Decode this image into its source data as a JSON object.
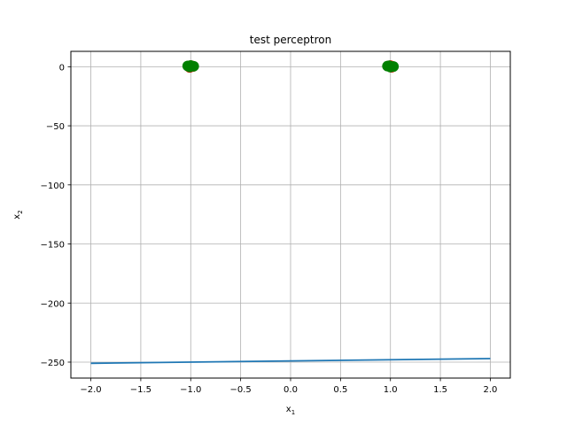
{
  "chart_data": {
    "type": "scatter",
    "title": "test perceptron",
    "xlabel": {
      "base": "x",
      "sub": "1"
    },
    "ylabel": {
      "base": "x",
      "sub": "2"
    },
    "xlim": [
      -2.2,
      2.2
    ],
    "ylim": [
      -263.5,
      13
    ],
    "xticks": [
      -2.0,
      -1.5,
      -1.0,
      -0.5,
      0.0,
      0.5,
      1.0,
      1.5,
      2.0
    ],
    "xtick_labels": [
      "−2.0",
      "−1.5",
      "−1.0",
      "−0.5",
      "0.0",
      "0.5",
      "1.0",
      "1.5",
      "2.0"
    ],
    "yticks": [
      0,
      -50,
      -100,
      -150,
      -200,
      -250
    ],
    "ytick_labels": [
      "0",
      "−50",
      "−100",
      "−150",
      "−200",
      "−250"
    ],
    "grid": true,
    "series": [
      {
        "type": "scatter",
        "color": "#ff0000",
        "x": [
          -1.02,
          -1.0,
          -0.98,
          -1.01,
          -0.99,
          0.98,
          1.0,
          1.02,
          1.01,
          0.99
        ],
        "y": [
          0.4,
          0.9,
          0.2,
          -0.6,
          0.7,
          0.5,
          0.9,
          0.3,
          -0.5,
          0.6
        ]
      },
      {
        "type": "scatter",
        "color": "#008000",
        "x": [
          -1.03,
          -1.0,
          -0.97,
          -1.01,
          0.97,
          1.0,
          1.03,
          0.99
        ],
        "y": [
          0.6,
          1.0,
          0.4,
          -0.2,
          0.5,
          -0.3,
          0.2,
          0.8
        ]
      },
      {
        "type": "line",
        "color": "#1f77b4",
        "x": [
          -2.0,
          2.0
        ],
        "y": [
          -251.0,
          -247.0
        ]
      }
    ]
  }
}
